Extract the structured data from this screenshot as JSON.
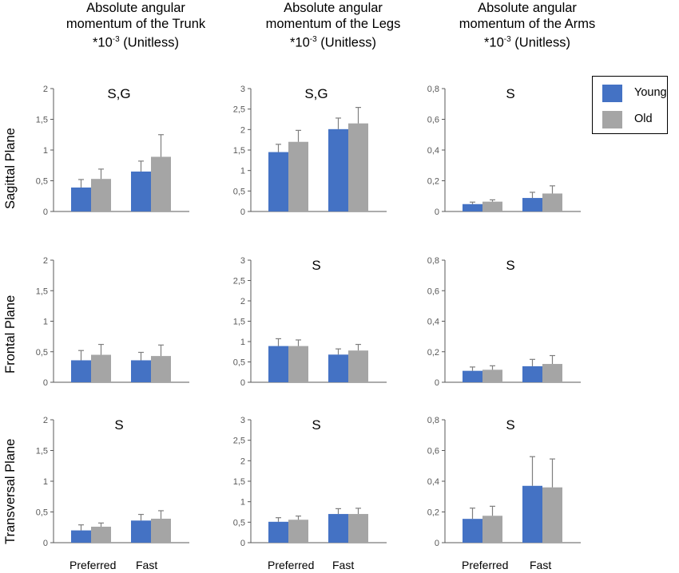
{
  "column_titles": [
    {
      "line1": "Absolute  angular",
      "line2": "momentum of the Trunk",
      "line3_base": "*10",
      "line3_exp": "-3",
      "line3_rest": " (Unitless)"
    },
    {
      "line1": "Absolute  angular",
      "line2": "momentum of the Legs",
      "line3_base": "*10",
      "line3_exp": "-3",
      "line3_rest": " (Unitless)"
    },
    {
      "line1": "Absolute  angular",
      "line2": "momentum of the Arms",
      "line3_base": "*10",
      "line3_exp": "-3",
      "line3_rest": " (Unitless)"
    }
  ],
  "row_labels": [
    "Sagittal Plane",
    "Frontal Plane",
    "Transversal Plane"
  ],
  "x_categories": [
    "Preferred",
    "Fast"
  ],
  "legend": [
    {
      "label": "Young",
      "color": "#4472C4"
    },
    {
      "label": "Old",
      "color": "#A5A5A5"
    }
  ],
  "colors": {
    "young": "#4472C4",
    "old": "#A5A5A5",
    "axis": "#595959",
    "error_bar": "#7F7F7F"
  },
  "chart_data": [
    {
      "type": "bar",
      "row": "Sagittal Plane",
      "column": "Trunk",
      "categories": [
        "Preferred",
        "Fast"
      ],
      "ylim": [
        0,
        2
      ],
      "ytick_labels": [
        "0",
        "0,5",
        "1",
        "1,5",
        "2"
      ],
      "ytick_values": [
        0,
        0.5,
        1,
        1.5,
        2
      ],
      "annotation": "S,G",
      "series": [
        {
          "name": "Young",
          "values": [
            0.39,
            0.65
          ],
          "errors": [
            0.13,
            0.17
          ]
        },
        {
          "name": "Old",
          "values": [
            0.53,
            0.89
          ],
          "errors": [
            0.16,
            0.36
          ]
        }
      ]
    },
    {
      "type": "bar",
      "row": "Sagittal Plane",
      "column": "Legs",
      "categories": [
        "Preferred",
        "Fast"
      ],
      "ylim": [
        0,
        3
      ],
      "ytick_labels": [
        "0",
        "0,5",
        "1",
        "1,5",
        "2",
        "2,5",
        "3"
      ],
      "ytick_values": [
        0,
        0.5,
        1,
        1.5,
        2,
        2.5,
        3
      ],
      "annotation": "S,G",
      "series": [
        {
          "name": "Young",
          "values": [
            1.45,
            2.01
          ],
          "errors": [
            0.19,
            0.27
          ]
        },
        {
          "name": "Old",
          "values": [
            1.7,
            2.15
          ],
          "errors": [
            0.28,
            0.39
          ]
        }
      ]
    },
    {
      "type": "bar",
      "row": "Sagittal Plane",
      "column": "Arms",
      "categories": [
        "Preferred",
        "Fast"
      ],
      "ylim": [
        0,
        0.8
      ],
      "ytick_labels": [
        "0",
        "0,2",
        "0,4",
        "0,6",
        "0,8"
      ],
      "ytick_values": [
        0,
        0.2,
        0.4,
        0.6,
        0.8
      ],
      "annotation": "S",
      "series": [
        {
          "name": "Young",
          "values": [
            0.048,
            0.088
          ],
          "errors": [
            0.013,
            0.037
          ]
        },
        {
          "name": "Old",
          "values": [
            0.064,
            0.117
          ],
          "errors": [
            0.012,
            0.05
          ]
        }
      ]
    },
    {
      "type": "bar",
      "row": "Frontal Plane",
      "column": "Trunk",
      "categories": [
        "Preferred",
        "Fast"
      ],
      "ylim": [
        0,
        2
      ],
      "ytick_labels": [
        "0",
        "0,5",
        "1",
        "1,5",
        "2"
      ],
      "ytick_values": [
        0,
        0.5,
        1,
        1.5,
        2
      ],
      "annotation": "",
      "series": [
        {
          "name": "Young",
          "values": [
            0.36,
            0.36
          ],
          "errors": [
            0.16,
            0.13
          ]
        },
        {
          "name": "Old",
          "values": [
            0.45,
            0.43
          ],
          "errors": [
            0.17,
            0.18
          ]
        }
      ]
    },
    {
      "type": "bar",
      "row": "Frontal Plane",
      "column": "Legs",
      "categories": [
        "Preferred",
        "Fast"
      ],
      "ylim": [
        0,
        3
      ],
      "ytick_labels": [
        "0",
        "0,5",
        "1",
        "1,5",
        "2",
        "2,5",
        "3"
      ],
      "ytick_values": [
        0,
        0.5,
        1,
        1.5,
        2,
        2.5,
        3
      ],
      "annotation": "S",
      "series": [
        {
          "name": "Young",
          "values": [
            0.89,
            0.68
          ],
          "errors": [
            0.18,
            0.14
          ]
        },
        {
          "name": "Old",
          "values": [
            0.89,
            0.78
          ],
          "errors": [
            0.15,
            0.15
          ]
        }
      ]
    },
    {
      "type": "bar",
      "row": "Frontal Plane",
      "column": "Arms",
      "categories": [
        "Preferred",
        "Fast"
      ],
      "ylim": [
        0,
        0.8
      ],
      "ytick_labels": [
        "0",
        "0,2",
        "0,4",
        "0,6",
        "0,8"
      ],
      "ytick_values": [
        0,
        0.2,
        0.4,
        0.6,
        0.8
      ],
      "annotation": "S",
      "series": [
        {
          "name": "Young",
          "values": [
            0.075,
            0.105
          ],
          "errors": [
            0.025,
            0.045
          ]
        },
        {
          "name": "Old",
          "values": [
            0.082,
            0.12
          ],
          "errors": [
            0.026,
            0.055
          ]
        }
      ]
    },
    {
      "type": "bar",
      "row": "Transversal Plane",
      "column": "Trunk",
      "categories": [
        "Preferred",
        "Fast"
      ],
      "ylim": [
        0,
        2
      ],
      "ytick_labels": [
        "0",
        "0,5",
        "1",
        "1,5",
        "2"
      ],
      "ytick_values": [
        0,
        0.5,
        1,
        1.5,
        2
      ],
      "annotation": "S",
      "series": [
        {
          "name": "Young",
          "values": [
            0.2,
            0.36
          ],
          "errors": [
            0.09,
            0.1
          ]
        },
        {
          "name": "Old",
          "values": [
            0.26,
            0.39
          ],
          "errors": [
            0.06,
            0.13
          ]
        }
      ]
    },
    {
      "type": "bar",
      "row": "Transversal Plane",
      "column": "Legs",
      "categories": [
        "Preferred",
        "Fast"
      ],
      "ylim": [
        0,
        3
      ],
      "ytick_labels": [
        "0",
        "0,5",
        "1",
        "1,5",
        "2",
        "2,5",
        "3"
      ],
      "ytick_values": [
        0,
        0.5,
        1,
        1.5,
        2,
        2.5,
        3
      ],
      "annotation": "S",
      "series": [
        {
          "name": "Young",
          "values": [
            0.51,
            0.7
          ],
          "errors": [
            0.1,
            0.13
          ]
        },
        {
          "name": "Old",
          "values": [
            0.56,
            0.7
          ],
          "errors": [
            0.09,
            0.14
          ]
        }
      ]
    },
    {
      "type": "bar",
      "row": "Transversal Plane",
      "column": "Arms",
      "categories": [
        "Preferred",
        "Fast"
      ],
      "ylim": [
        0,
        0.8
      ],
      "ytick_labels": [
        "0",
        "0,2",
        "0,4",
        "0,6",
        "0,8"
      ],
      "ytick_values": [
        0,
        0.2,
        0.4,
        0.6,
        0.8
      ],
      "annotation": "S",
      "series": [
        {
          "name": "Young",
          "values": [
            0.155,
            0.37
          ],
          "errors": [
            0.07,
            0.19
          ]
        },
        {
          "name": "Old",
          "values": [
            0.175,
            0.36
          ],
          "errors": [
            0.062,
            0.185
          ]
        }
      ]
    }
  ]
}
